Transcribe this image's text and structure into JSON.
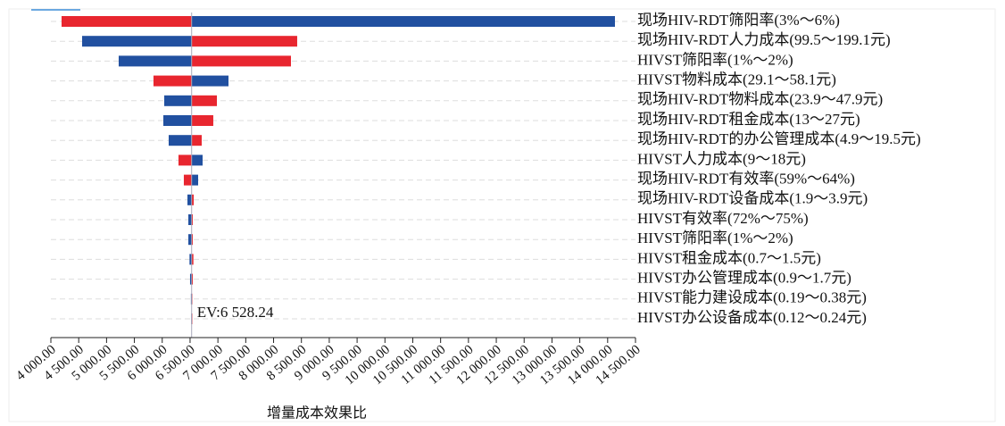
{
  "chart_data": {
    "type": "tornado",
    "x_label": "增量成本效果比",
    "categories": [
      "现场HIV-RDT筛阳率(3%～6%)",
      "现场HIV-RDT人力成本(99.5～199.1元)",
      "HIVST筛阳率(1%～2%)",
      "HIVST物料成本(29.1～58.1元)",
      "现场HIV-RDT物料成本(23.9～47.9元)",
      "现场HIV-RDT租金成本(13～27元)",
      "现场HIV-RDT的办公管理成本(4.9～19.5元)",
      "HIVST人力成本(9～18元)",
      "现场HIV-RDT有效率(59%～64%)",
      "现场HIV-RDT设备成本(1.9～3.9元)",
      "HIVST有效率(72%～75%)",
      "HIVST筛阳率(1%～2%)",
      "HIVST租金成本(0.7～1.5元)",
      "HIVST办公管理成本(0.9～1.7元)",
      "HIVST能力建设成本(0.19～0.38元)",
      "HIVST办公设备成本(0.12～0.24元)"
    ],
    "series": [
      {
        "color": "#e8262f",
        "values": [
          4192,
          8424,
          8312,
          5843,
          6982,
          6917,
          6709,
          6292,
          6388,
          6565,
          6549,
          6549,
          6560,
          6550,
          6540,
          6535
        ]
      },
      {
        "color": "#2150a0",
        "values": [
          14131,
          4561,
          5218,
          7190,
          6036,
          6020,
          6116,
          6725,
          6645,
          6453,
          6469,
          6469,
          6490,
          6500,
          6515,
          6520
        ]
      }
    ],
    "base": {
      "value": 6528.24,
      "label": "EV:6 528.24"
    },
    "xlim": [
      4000,
      14500
    ],
    "xticks": [
      {
        "value": 4000,
        "label": "4 000.00"
      },
      {
        "value": 4500,
        "label": "4 500.00"
      },
      {
        "value": 5000,
        "label": "5 000.00"
      },
      {
        "value": 5500,
        "label": "5 500.00"
      },
      {
        "value": 6000,
        "label": "6 000.00"
      },
      {
        "value": 6500,
        "label": "6 500.00"
      },
      {
        "value": 7000,
        "label": "7 000.00"
      },
      {
        "value": 7500,
        "label": "7 500.00"
      },
      {
        "value": 8000,
        "label": "8 000.00"
      },
      {
        "value": 8500,
        "label": "8 500.00"
      },
      {
        "value": 9000,
        "label": "9 000.00"
      },
      {
        "value": 9500,
        "label": "9 500.00"
      },
      {
        "value": 10000,
        "label": "10 000.00"
      },
      {
        "value": 10500,
        "label": "10 500.00"
      },
      {
        "value": 11000,
        "label": "11 000.00"
      },
      {
        "value": 11500,
        "label": "11 500.00"
      },
      {
        "value": 12000,
        "label": "12 000.00"
      },
      {
        "value": 12500,
        "label": "12 500.00"
      },
      {
        "value": 13000,
        "label": "13 000.00"
      },
      {
        "value": 13500,
        "label": "13 500.00"
      },
      {
        "value": 14000,
        "label": "14 000.00"
      },
      {
        "value": 14500,
        "label": "14 500.00"
      }
    ],
    "grid": true
  }
}
